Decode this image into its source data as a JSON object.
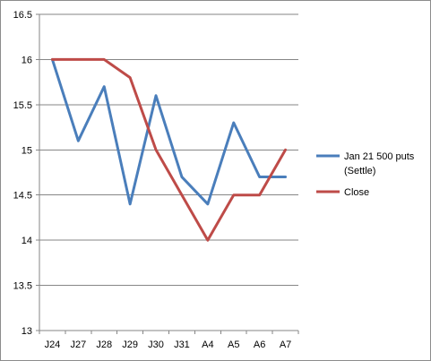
{
  "chart_data": {
    "type": "line",
    "title": "",
    "xlabel": "",
    "ylabel": "",
    "categories": [
      "J24",
      "J27",
      "J28",
      "J29",
      "J30",
      "J31",
      "A4",
      "A5",
      "A6",
      "A7"
    ],
    "ylim": [
      13,
      16.5
    ],
    "yticks": [
      "13",
      "13.5",
      "14",
      "14.5",
      "15",
      "15.5",
      "16",
      "16.5"
    ],
    "grid": "horizontal",
    "legend": "right",
    "series": [
      {
        "name": "Jan 21 500 puts (Settle)",
        "legend_lines": [
          "Jan 21 500 puts",
          "(Settle)"
        ],
        "color": "#4a7ebb",
        "values": [
          16.0,
          15.1,
          15.7,
          14.4,
          15.6,
          14.7,
          14.4,
          15.3,
          14.7,
          14.7
        ]
      },
      {
        "name": "Close",
        "legend_lines": [
          "Close"
        ],
        "color": "#be4b48",
        "values": [
          16.0,
          16.0,
          16.0,
          15.8,
          15.0,
          14.5,
          14.0,
          14.5,
          14.5,
          15.0
        ]
      }
    ]
  }
}
